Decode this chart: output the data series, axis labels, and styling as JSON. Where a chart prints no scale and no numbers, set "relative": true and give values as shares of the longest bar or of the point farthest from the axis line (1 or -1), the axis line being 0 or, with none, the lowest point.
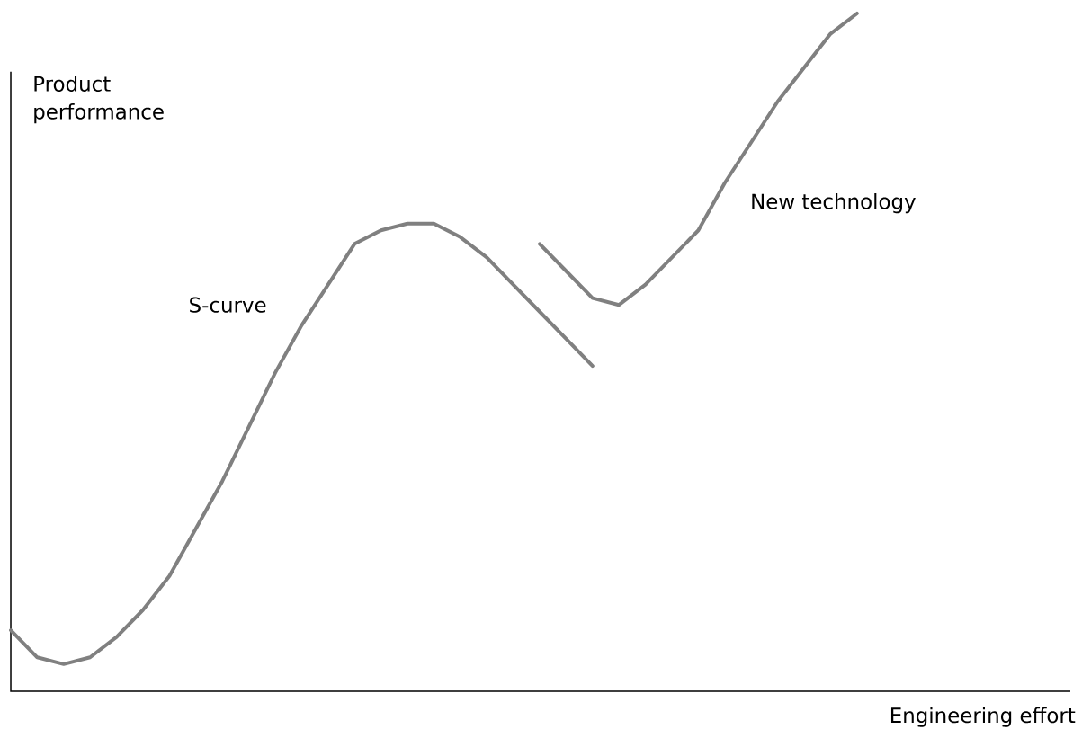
{
  "chart_data": {
    "type": "line",
    "relative": true,
    "xlabel": "Engineering effort",
    "ylabel": "Product performance",
    "line_style": "solid",
    "marker": "none",
    "categories": [
      null,
      null,
      null,
      null,
      null,
      null,
      null,
      null,
      null,
      null,
      null,
      null,
      null,
      null,
      null,
      null,
      null,
      null,
      null,
      null,
      null,
      null,
      null,
      null,
      null,
      null,
      null,
      null,
      null,
      null,
      null,
      null,
      null
    ],
    "series": [
      {
        "name": "S-curve",
        "color": "#808080",
        "values": [
          0.09,
          0.05,
          0.04,
          0.05,
          0.08,
          0.12,
          0.17,
          0.24,
          0.31,
          0.39,
          0.47,
          0.54,
          0.6,
          0.66,
          0.68,
          0.69,
          0.69,
          0.67,
          0.64,
          0.6,
          0.56,
          0.52,
          0.48,
          null,
          null,
          null,
          null,
          null,
          null,
          null,
          null,
          null,
          null
        ]
      },
      {
        "name": "New technology",
        "color": "#808080",
        "values": [
          null,
          null,
          null,
          null,
          null,
          null,
          null,
          null,
          null,
          null,
          null,
          null,
          null,
          null,
          null,
          null,
          null,
          null,
          null,
          null,
          0.66,
          0.62,
          0.58,
          0.57,
          0.6,
          0.64,
          0.68,
          0.75,
          0.81,
          0.87,
          0.92,
          0.97,
          1
        ]
      }
    ]
  }
}
